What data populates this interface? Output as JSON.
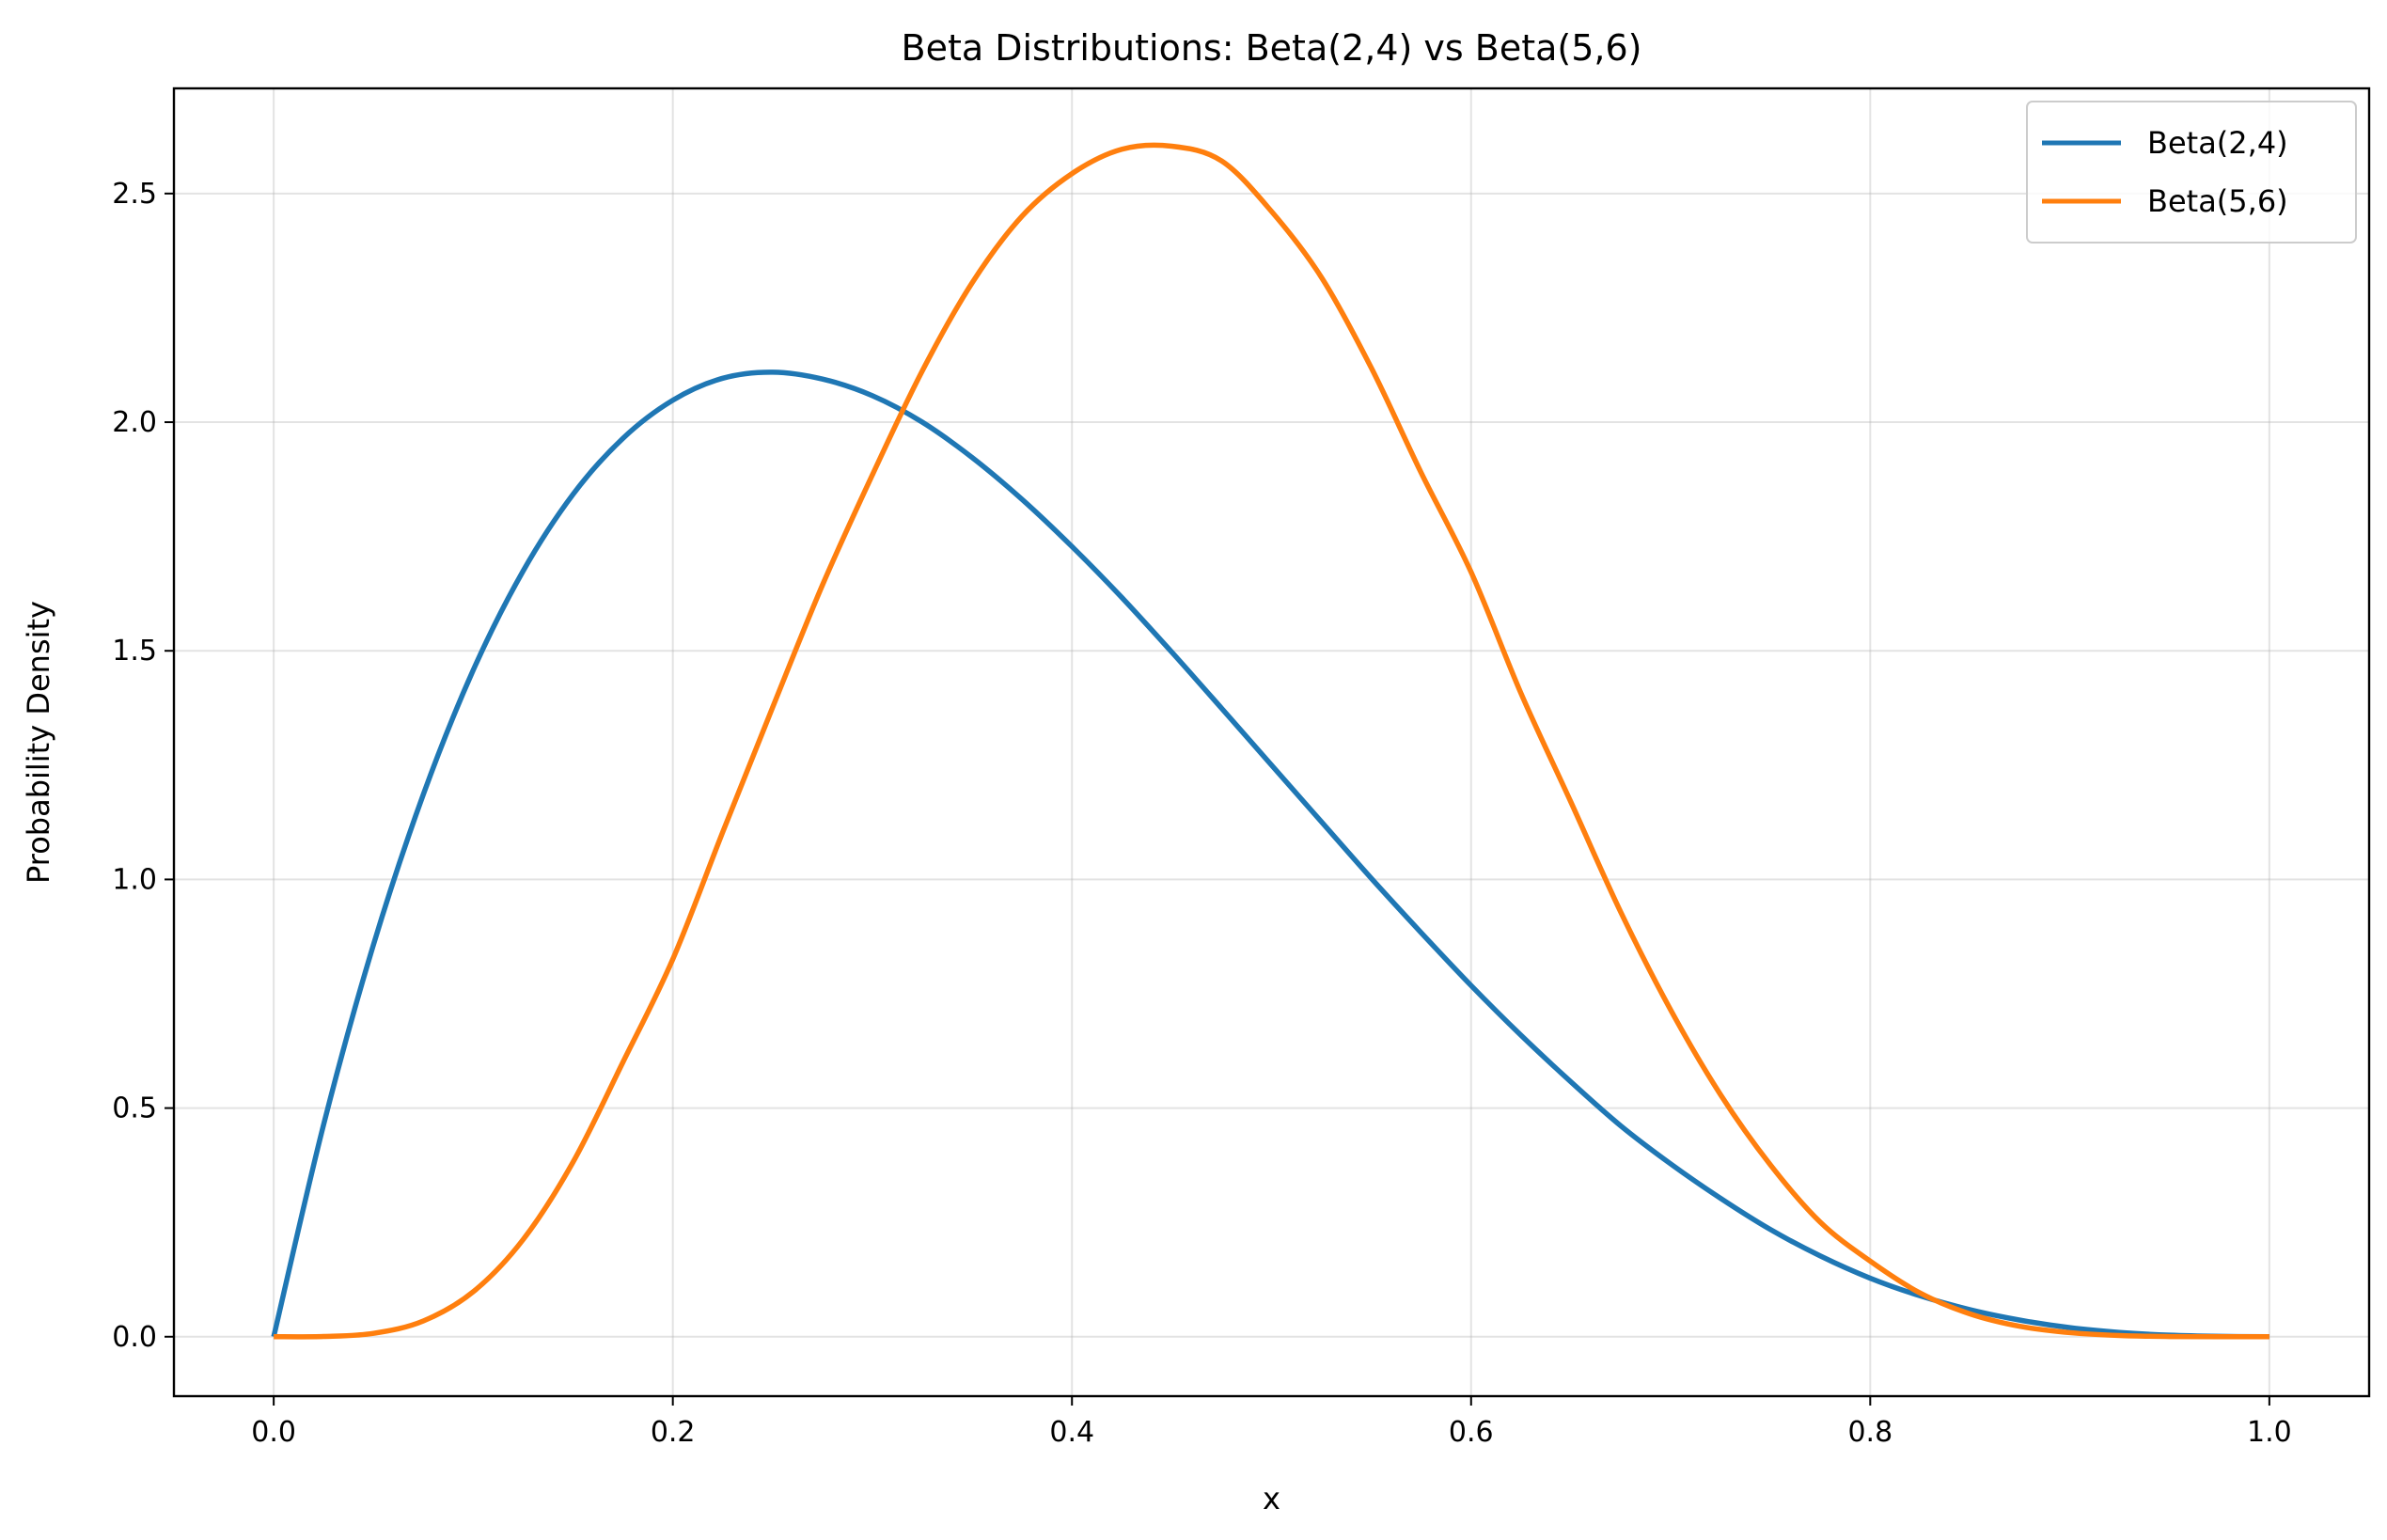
{
  "chart_data": {
    "type": "line",
    "title": "Beta Distributions: Beta(2,4) vs Beta(5,6)",
    "xlabel": "x",
    "ylabel": "Probability Density",
    "xlim": [
      -0.05,
      1.05
    ],
    "ylim": [
      -0.13,
      2.73
    ],
    "xticks": [
      0.0,
      0.2,
      0.4,
      0.6,
      0.8,
      1.0
    ],
    "xtick_labels": [
      "0.0",
      "0.2",
      "0.4",
      "0.6",
      "0.8",
      "1.0"
    ],
    "yticks": [
      0.0,
      0.5,
      1.0,
      1.5,
      2.0,
      2.5
    ],
    "ytick_labels": [
      "0.0",
      "0.5",
      "1.0",
      "1.5",
      "2.0",
      "2.5"
    ],
    "grid": true,
    "legend_position": "top-right",
    "x": [
      0.0,
      0.025,
      0.05,
      0.075,
      0.1,
      0.125,
      0.15,
      0.175,
      0.2,
      0.225,
      0.25,
      0.275,
      0.3,
      0.325,
      0.35,
      0.375,
      0.4,
      0.425,
      0.45,
      0.475,
      0.5,
      0.525,
      0.55,
      0.575,
      0.6,
      0.625,
      0.65,
      0.675,
      0.7,
      0.725,
      0.75,
      0.775,
      0.8,
      0.825,
      0.85,
      0.875,
      0.9,
      0.925,
      0.95,
      0.975,
      1.0
    ],
    "series": [
      {
        "name": "Beta(2,4)",
        "color": "#1f77b4",
        "values": [
          0.0,
          0.4637,
          0.8574,
          1.1862,
          1.458,
          1.6748,
          1.8423,
          1.9647,
          2.048,
          2.0961,
          2.1094,
          2.0943,
          2.058,
          2.0001,
          1.9226,
          1.8311,
          1.728,
          1.6165,
          1.4972,
          1.3742,
          1.25,
          1.1261,
          1.0024,
          0.8835,
          0.768,
          0.6592,
          0.5574,
          0.4612,
          0.378,
          0.3027,
          0.2344,
          0.1766,
          0.128,
          0.0894,
          0.0591,
          0.0363,
          0.0198,
          0.0093,
          0.0033,
          0.0007,
          0.0
        ]
      },
      {
        "name": "Beta(5,6)",
        "color": "#ff7f0e",
        "values": [
          0.0,
          0.0005,
          0.0074,
          0.0345,
          0.0984,
          0.2126,
          0.3819,
          0.6004,
          0.8258,
          1.1036,
          1.3763,
          1.6441,
          1.8849,
          2.1122,
          2.3049,
          2.4506,
          2.5436,
          2.5968,
          2.6035,
          2.5712,
          2.4609,
          2.3168,
          2.1187,
          1.8892,
          1.6721,
          1.4071,
          1.1693,
          0.9286,
          0.7147,
          0.5293,
          0.3757,
          0.2503,
          0.1652,
          0.0955,
          0.0499,
          0.0227,
          0.0089,
          0.0026,
          0.0004,
          0.0,
          0.0
        ]
      }
    ]
  }
}
